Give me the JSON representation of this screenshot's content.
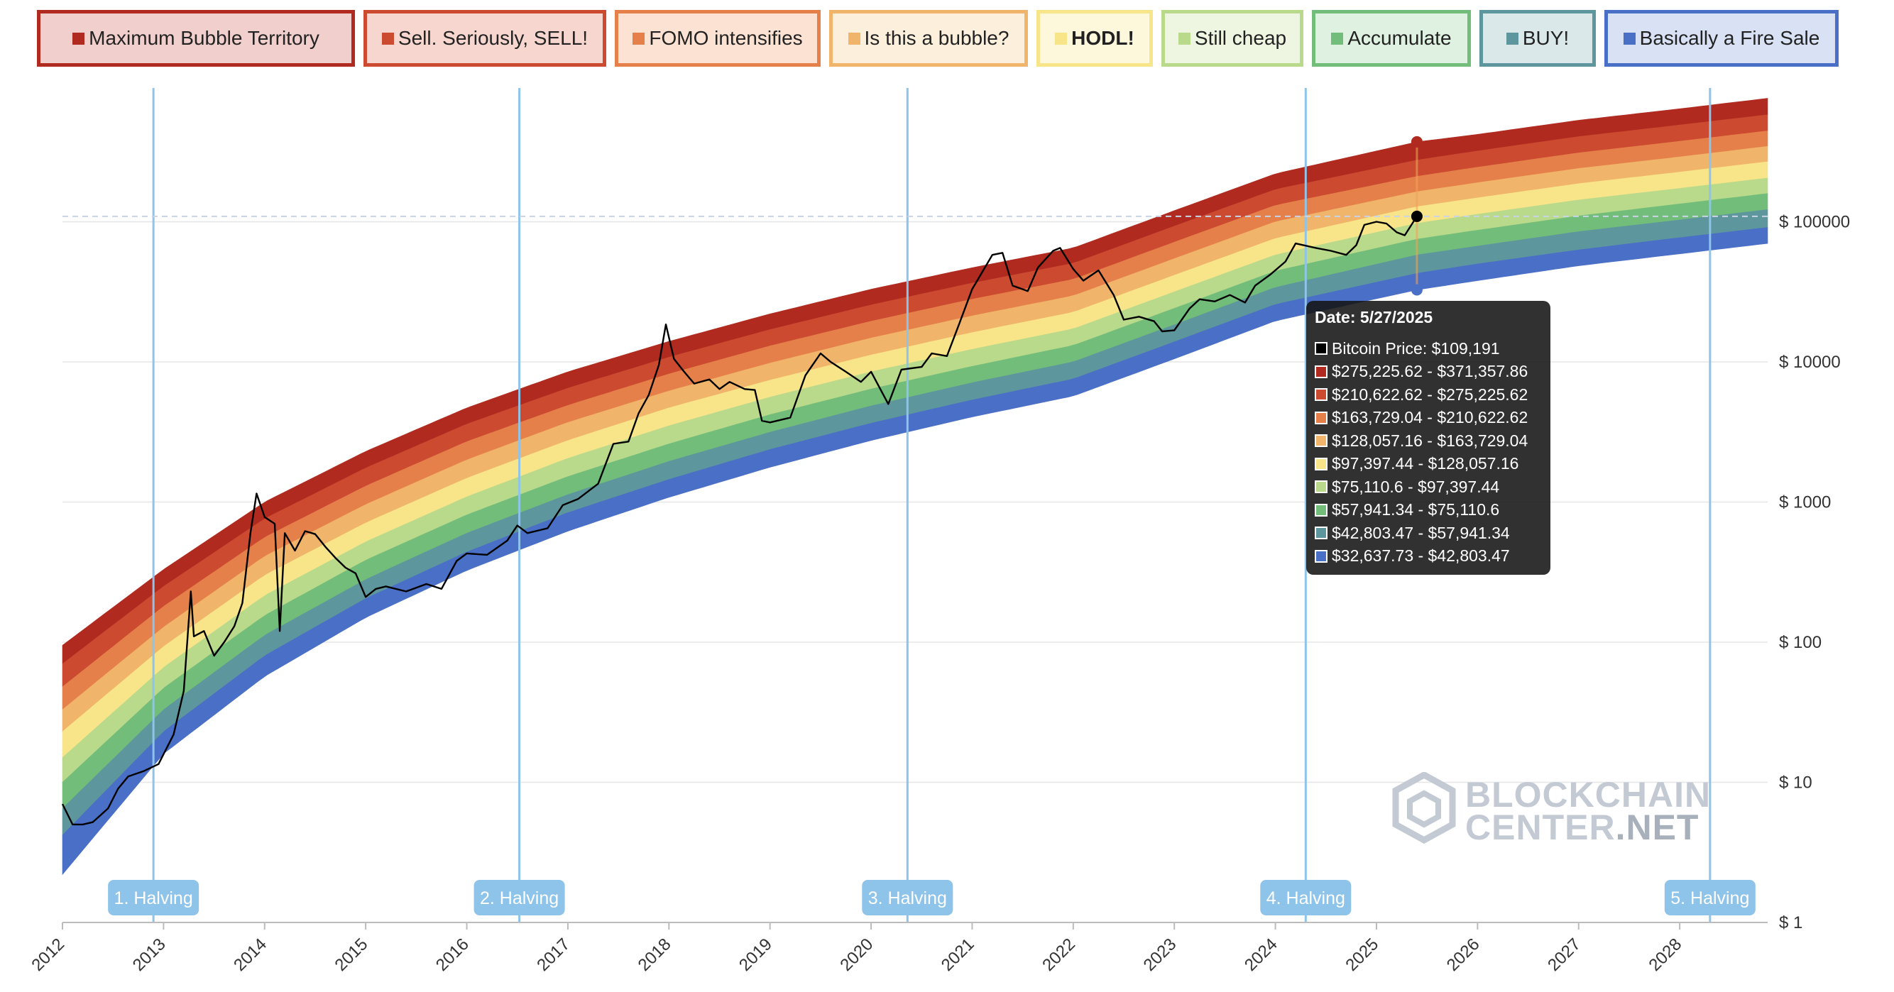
{
  "legend": [
    {
      "label": "Maximum Bubble Territory",
      "color": "#b02a1f",
      "bg": "#f1cfcc",
      "bold": false
    },
    {
      "label": "Sell. Seriously, SELL!",
      "color": "#cc4a30",
      "bg": "#f6d6cf",
      "bold": false
    },
    {
      "label": "FOMO intensifies",
      "color": "#e6804a",
      "bg": "#fbe2d3",
      "bold": false
    },
    {
      "label": "Is this a bubble?",
      "color": "#f0b46a",
      "bg": "#fcefdc",
      "bold": false
    },
    {
      "label": "HODL!",
      "color": "#f8e58a",
      "bg": "#fdf8dc",
      "bold": true
    },
    {
      "label": "Still cheap",
      "color": "#b9d98b",
      "bg": "#eef6e2",
      "bold": false
    },
    {
      "label": "Accumulate",
      "color": "#72bd7a",
      "bg": "#dff1e0",
      "bold": false
    },
    {
      "label": "BUY!",
      "color": "#5e969e",
      "bg": "#dbe8ea",
      "bold": false
    },
    {
      "label": "Basically a Fire Sale",
      "color": "#4a6fc6",
      "bg": "#d9e1f4",
      "bold": false
    }
  ],
  "tooltip": {
    "title": "Date: 5/27/2025",
    "rows": [
      {
        "label": "Bitcoin Price: $109,191",
        "color": "#000000"
      },
      {
        "label": "$275,225.62 - $371,357.86",
        "color": "#b02a1f"
      },
      {
        "label": "$210,622.62 - $275,225.62",
        "color": "#cc4a30"
      },
      {
        "label": "$163,729.04 - $210,622.62",
        "color": "#e6804a"
      },
      {
        "label": "$128,057.16 - $163,729.04",
        "color": "#f0b46a"
      },
      {
        "label": "$97,397.44 - $128,057.16",
        "color": "#f8e58a"
      },
      {
        "label": "$75,110.6 - $97,397.44",
        "color": "#b9d98b"
      },
      {
        "label": "$57,941.34 - $75,110.6",
        "color": "#72bd7a"
      },
      {
        "label": "$42,803.47 - $57,941.34",
        "color": "#5e969e"
      },
      {
        "label": "$32,637.73 - $42,803.47",
        "color": "#4a6fc6"
      }
    ]
  },
  "watermark": {
    "line1": "BLOCKCHAIN",
    "line2a": "CENTER",
    "line2b": ".NET"
  },
  "chart_data": {
    "type": "line",
    "y_scale": "log",
    "ylim": [
      1,
      900000
    ],
    "xlim": [
      2012.0,
      2028.87
    ],
    "grid": true,
    "y_ticks": [
      {
        "value": 1,
        "label": "$ 1"
      },
      {
        "value": 10,
        "label": "$ 10"
      },
      {
        "value": 100,
        "label": "$ 100"
      },
      {
        "value": 1000,
        "label": "$ 1000"
      },
      {
        "value": 10000,
        "label": "$ 10000"
      },
      {
        "value": 100000,
        "label": "$ 100000"
      }
    ],
    "x_ticks": [
      "2012",
      "2013",
      "2014",
      "2015",
      "2016",
      "2017",
      "2018",
      "2019",
      "2020",
      "2021",
      "2022",
      "2023",
      "2024",
      "2025",
      "2026",
      "2027",
      "2028"
    ],
    "current_price": 109191,
    "current_date": 2025.4,
    "halvings": [
      {
        "label": "1. Halving",
        "date": 2012.9
      },
      {
        "label": "2. Halving",
        "date": 2016.52
      },
      {
        "label": "3. Halving",
        "date": 2020.36
      },
      {
        "label": "4. Halving",
        "date": 2024.3
      },
      {
        "label": "5. Halving",
        "date": 2028.3
      }
    ],
    "bands": [
      {
        "name": "Maximum Bubble Territory",
        "color": "#b02a1f",
        "lower_2025_4": 275225.62,
        "upper_2025_4": 371357.86
      },
      {
        "name": "Sell. Seriously, SELL!",
        "color": "#cc4a30",
        "lower_2025_4": 210622.62,
        "upper_2025_4": 275225.62
      },
      {
        "name": "FOMO intensifies",
        "color": "#e6804a",
        "lower_2025_4": 163729.04,
        "upper_2025_4": 210622.62
      },
      {
        "name": "Is this a bubble?",
        "color": "#f0b46a",
        "lower_2025_4": 128057.16,
        "upper_2025_4": 163729.04
      },
      {
        "name": "HODL!",
        "color": "#f8e58a",
        "lower_2025_4": 97397.44,
        "upper_2025_4": 128057.16
      },
      {
        "name": "Still cheap",
        "color": "#b9d98b",
        "lower_2025_4": 75110.6,
        "upper_2025_4": 97397.44
      },
      {
        "name": "Accumulate",
        "color": "#72bd7a",
        "lower_2025_4": 57941.34,
        "upper_2025_4": 75110.6
      },
      {
        "name": "BUY!",
        "color": "#5e969e",
        "lower_2025_4": 42803.47,
        "upper_2025_4": 57941.34
      },
      {
        "name": "Basically a Fire Sale",
        "color": "#4a6fc6",
        "lower_2025_4": 32637.73,
        "upper_2025_4": 42803.47
      }
    ],
    "band_edges_approx": [
      {
        "x": 2012.0,
        "values": [
          95,
          70,
          48,
          33,
          23,
          15,
          10,
          6.5,
          4.2,
          2.2
        ]
      },
      {
        "x": 2013.0,
        "values": [
          330,
          250,
          180,
          128,
          93,
          66,
          47,
          33,
          23,
          16
        ]
      },
      {
        "x": 2014.0,
        "values": [
          1000,
          760,
          560,
          410,
          300,
          215,
          155,
          112,
          80,
          57
        ]
      },
      {
        "x": 2015.0,
        "values": [
          2300,
          1750,
          1300,
          960,
          710,
          520,
          385,
          280,
          205,
          150
        ]
      },
      {
        "x": 2016.0,
        "values": [
          4700,
          3600,
          2700,
          2000,
          1480,
          1090,
          810,
          600,
          440,
          325
        ]
      },
      {
        "x": 2017.0,
        "values": [
          8500,
          6500,
          4900,
          3700,
          2750,
          2050,
          1520,
          1130,
          840,
          620
        ]
      },
      {
        "x": 2018.0,
        "values": [
          14000,
          10800,
          8200,
          6200,
          4700,
          3500,
          2600,
          1950,
          1450,
          1080
        ]
      },
      {
        "x": 2019.0,
        "values": [
          22000,
          17000,
          13000,
          9800,
          7400,
          5600,
          4200,
          3150,
          2370,
          1770
        ]
      },
      {
        "x": 2020.0,
        "values": [
          33000,
          25500,
          19500,
          14800,
          11200,
          8500,
          6400,
          4850,
          3650,
          2750
        ]
      },
      {
        "x": 2021.0,
        "values": [
          47000,
          36500,
          28000,
          21300,
          16200,
          12300,
          9300,
          7100,
          5350,
          4050
        ]
      },
      {
        "x": 2022.0,
        "values": [
          65000,
          50500,
          38800,
          29600,
          22600,
          17200,
          13100,
          10000,
          7550,
          5700
        ]
      },
      {
        "x": 2023.0,
        "values": [
          120000,
          93000,
          71500,
          54500,
          41500,
          31600,
          24100,
          18400,
          13900,
          10500
        ]
      },
      {
        "x": 2024.0,
        "values": [
          220000,
          170000,
          131000,
          100000,
          76000,
          58000,
          44500,
          34000,
          25700,
          19600
        ]
      },
      {
        "x": 2025.4,
        "values": [
          371357.86,
          275225.62,
          210622.62,
          163729.04,
          128057.16,
          97397.44,
          75110.6,
          57941.34,
          42803.47,
          32637.73
        ]
      },
      {
        "x": 2026.0,
        "values": [
          420000,
          320000,
          245000,
          190000,
          148000,
          113000,
          87000,
          67000,
          50000,
          38000
        ]
      },
      {
        "x": 2027.0,
        "values": [
          530000,
          405000,
          310000,
          240000,
          187000,
          143000,
          110000,
          85000,
          63000,
          48500
        ]
      },
      {
        "x": 2028.0,
        "values": [
          640000,
          490000,
          375000,
          290000,
          226000,
          173000,
          134000,
          103000,
          77000,
          59000
        ]
      },
      {
        "x": 2028.87,
        "values": [
          760000,
          580000,
          445000,
          345000,
          268000,
          205000,
          159000,
          122000,
          91000,
          70000
        ]
      }
    ],
    "series": [
      {
        "name": "Bitcoin Price",
        "color": "#000000",
        "points": [
          [
            2012.0,
            7
          ],
          [
            2012.1,
            5
          ],
          [
            2012.2,
            5
          ],
          [
            2012.3,
            5.2
          ],
          [
            2012.45,
            6.5
          ],
          [
            2012.55,
            9
          ],
          [
            2012.65,
            11
          ],
          [
            2012.8,
            12
          ],
          [
            2012.95,
            13.5
          ],
          [
            2013.1,
            22
          ],
          [
            2013.2,
            45
          ],
          [
            2013.27,
            230
          ],
          [
            2013.3,
            110
          ],
          [
            2013.4,
            120
          ],
          [
            2013.5,
            80
          ],
          [
            2013.6,
            100
          ],
          [
            2013.7,
            130
          ],
          [
            2013.78,
            190
          ],
          [
            2013.86,
            600
          ],
          [
            2013.92,
            1150
          ],
          [
            2014.0,
            780
          ],
          [
            2014.1,
            700
          ],
          [
            2014.15,
            120
          ],
          [
            2014.2,
            600
          ],
          [
            2014.3,
            450
          ],
          [
            2014.4,
            620
          ],
          [
            2014.5,
            590
          ],
          [
            2014.6,
            480
          ],
          [
            2014.7,
            400
          ],
          [
            2014.8,
            340
          ],
          [
            2014.9,
            310
          ],
          [
            2015.0,
            210
          ],
          [
            2015.1,
            240
          ],
          [
            2015.2,
            250
          ],
          [
            2015.4,
            230
          ],
          [
            2015.6,
            260
          ],
          [
            2015.75,
            240
          ],
          [
            2015.9,
            380
          ],
          [
            2016.0,
            430
          ],
          [
            2016.2,
            420
          ],
          [
            2016.4,
            530
          ],
          [
            2016.5,
            680
          ],
          [
            2016.6,
            600
          ],
          [
            2016.8,
            650
          ],
          [
            2016.95,
            950
          ],
          [
            2017.1,
            1050
          ],
          [
            2017.3,
            1350
          ],
          [
            2017.45,
            2600
          ],
          [
            2017.6,
            2700
          ],
          [
            2017.7,
            4300
          ],
          [
            2017.8,
            5800
          ],
          [
            2017.9,
            9500
          ],
          [
            2017.97,
            18500
          ],
          [
            2018.05,
            10500
          ],
          [
            2018.15,
            8500
          ],
          [
            2018.25,
            7000
          ],
          [
            2018.4,
            7500
          ],
          [
            2018.5,
            6400
          ],
          [
            2018.6,
            7200
          ],
          [
            2018.75,
            6400
          ],
          [
            2018.85,
            6300
          ],
          [
            2018.92,
            3800
          ],
          [
            2019.0,
            3700
          ],
          [
            2019.2,
            4000
          ],
          [
            2019.35,
            8000
          ],
          [
            2019.5,
            11500
          ],
          [
            2019.6,
            10000
          ],
          [
            2019.75,
            8500
          ],
          [
            2019.9,
            7200
          ],
          [
            2020.0,
            8500
          ],
          [
            2020.17,
            5000
          ],
          [
            2020.3,
            8800
          ],
          [
            2020.5,
            9200
          ],
          [
            2020.6,
            11500
          ],
          [
            2020.75,
            11000
          ],
          [
            2020.87,
            18500
          ],
          [
            2021.0,
            33000
          ],
          [
            2021.2,
            58000
          ],
          [
            2021.3,
            60000
          ],
          [
            2021.4,
            35000
          ],
          [
            2021.55,
            32000
          ],
          [
            2021.65,
            47000
          ],
          [
            2021.8,
            62000
          ],
          [
            2021.87,
            65000
          ],
          [
            2022.0,
            46000
          ],
          [
            2022.1,
            38000
          ],
          [
            2022.25,
            45000
          ],
          [
            2022.4,
            30000
          ],
          [
            2022.5,
            20000
          ],
          [
            2022.65,
            21000
          ],
          [
            2022.8,
            19500
          ],
          [
            2022.88,
            16500
          ],
          [
            2023.0,
            16800
          ],
          [
            2023.15,
            24000
          ],
          [
            2023.25,
            28000
          ],
          [
            2023.4,
            27000
          ],
          [
            2023.55,
            30000
          ],
          [
            2023.7,
            26500
          ],
          [
            2023.8,
            35000
          ],
          [
            2023.95,
            42000
          ],
          [
            2024.1,
            52000
          ],
          [
            2024.2,
            70000
          ],
          [
            2024.4,
            65000
          ],
          [
            2024.55,
            62000
          ],
          [
            2024.7,
            58000
          ],
          [
            2024.8,
            68000
          ],
          [
            2024.88,
            95000
          ],
          [
            2025.0,
            100000
          ],
          [
            2025.1,
            97000
          ],
          [
            2025.2,
            84000
          ],
          [
            2025.28,
            80000
          ],
          [
            2025.35,
            96000
          ],
          [
            2025.4,
            109191
          ]
        ]
      }
    ]
  }
}
